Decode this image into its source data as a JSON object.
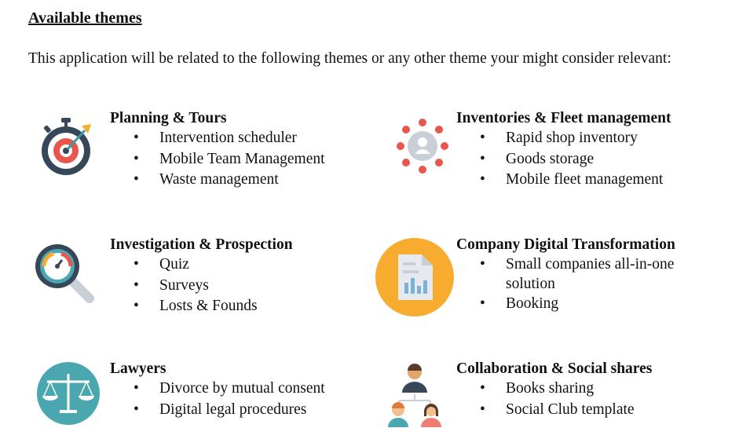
{
  "heading": "Available themes",
  "intro": "This application will be related to the following themes or any other theme your might consider relevant:",
  "themes": [
    {
      "title": "Planning & Tours",
      "icon": "target-stopwatch-icon",
      "items": [
        "Intervention scheduler",
        "Mobile Team Management",
        "Waste management"
      ]
    },
    {
      "title": "Inventories & Fleet management",
      "icon": "user-network-icon",
      "items": [
        "Rapid shop inventory",
        "Goods storage",
        "Mobile fleet management"
      ]
    },
    {
      "title": "Investigation & Prospection",
      "icon": "magnifier-gauge-icon",
      "items": [
        "Quiz",
        "Surveys",
        "Losts & Founds"
      ]
    },
    {
      "title": "Company Digital Transformation",
      "icon": "document-chart-icon",
      "items": [
        "Small companies all-in-one solution",
        "Booking"
      ]
    },
    {
      "title": "Lawyers",
      "icon": "balance-scale-icon",
      "items": [
        "Divorce by mutual consent",
        "Digital legal procedures"
      ]
    },
    {
      "title": "Collaboration & Social shares",
      "icon": "team-people-icon",
      "items": [
        "Books sharing",
        "Social Club template"
      ]
    }
  ],
  "colors": {
    "navy": "#36475a",
    "red": "#e8564d",
    "orange": "#f7ac2f",
    "teal": "#4aa7b0",
    "light_red": "#f07d73",
    "gray": "#c8cfd6"
  }
}
